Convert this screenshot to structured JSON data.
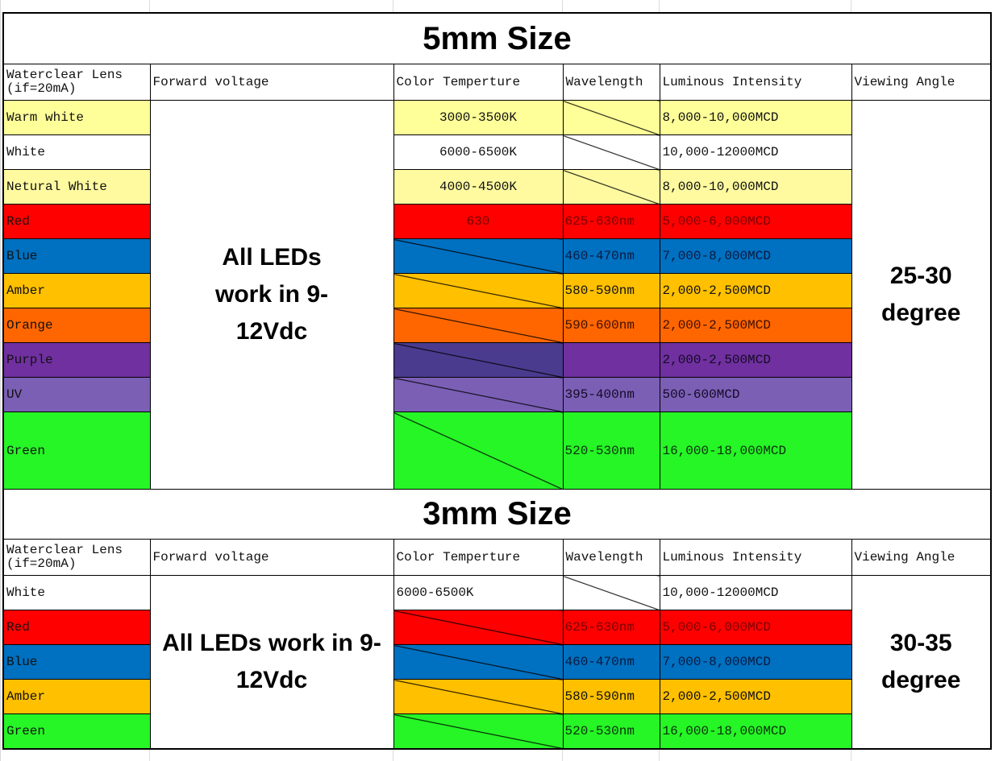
{
  "sections": [
    {
      "title": "5mm Size",
      "headers": [
        "Waterclear Lens\n(if=20mA)",
        "Forward voltage",
        "Color Temperture",
        "Wavelength",
        "Luminous Intensity",
        "Viewing Angle"
      ],
      "forward_voltage": "All LEDs work in 9-12Vdc",
      "viewing_angle": "25-30 degree",
      "rows": [
        {
          "name": "Warm white",
          "bg": "#ffff99",
          "fg": "#111111",
          "ct": "3000-3500K",
          "ct_center": true,
          "wl": "",
          "wl_diag": true,
          "li": "8,000-10,000MCD"
        },
        {
          "name": "White",
          "bg": "#ffffff",
          "fg": "#111111",
          "ct": "6000-6500K",
          "ct_center": true,
          "wl": "",
          "wl_diag": true,
          "li": "10,000-12000MCD"
        },
        {
          "name": "Netural White",
          "bg": "#fffaa0",
          "fg": "#111111",
          "ct": "4000-4500K",
          "ct_center": true,
          "wl": "",
          "wl_diag": true,
          "li": "8,000-10,000MCD"
        },
        {
          "name": "Red",
          "bg": "#ff0000",
          "fg": "#7a0000",
          "ct": "630",
          "ct_center": true,
          "wl": "625-630nm",
          "li": "5,000-6,000MCD"
        },
        {
          "name": "Blue",
          "bg": "#0070c0",
          "fg": "#0a1a40",
          "ct": "",
          "ct_diag": true,
          "wl": "460-470nm",
          "li": "7,000-8,000MCD"
        },
        {
          "name": "Amber",
          "bg": "#ffc000",
          "fg": "#111111",
          "ct": "",
          "ct_diag": true,
          "wl": "580-590nm",
          "li": "2,000-2,500MCD"
        },
        {
          "name": "Orange",
          "bg": "#ff6600",
          "fg": "#401000",
          "ct": "",
          "ct_diag": true,
          "wl": "590-600nm",
          "li": "2,000-2,500MCD"
        },
        {
          "name": "Purple",
          "bg": "#7030a0",
          "ct_bg": "#4b3b8f",
          "fg": "#150a25",
          "ct": "",
          "ct_diag": true,
          "wl": "",
          "li": "2,000-2,500MCD"
        },
        {
          "name": "UV",
          "bg": "#7b5fb5",
          "fg": "#150a25",
          "ct": "",
          "ct_diag": true,
          "wl": "395-400nm",
          "li": "500-600MCD"
        },
        {
          "name": "Green",
          "bg": "#26f526",
          "fg": "#0a300a",
          "ct": "",
          "ct_diag": true,
          "wl": "520-530nm",
          "li": "16,000-18,000MCD",
          "tall": true
        }
      ]
    },
    {
      "title": "3mm Size",
      "headers": [
        "Waterclear Lens\n(if=20mA)",
        "Forward voltage",
        "Color Temperture",
        "Wavelength",
        "Luminous Intensity",
        "Viewing Angle"
      ],
      "forward_voltage": "All LEDs work in 9-12Vdc",
      "viewing_angle": "30-35 degree",
      "rows": [
        {
          "name": "White",
          "bg": "#ffffff",
          "fg": "#111111",
          "ct": "6000-6500K",
          "wl": "",
          "wl_diag": true,
          "li": "10,000-12000MCD"
        },
        {
          "name": "Red",
          "bg": "#ff0000",
          "fg": "#7a0000",
          "ct": "",
          "ct_diag": true,
          "wl": "625-630nm",
          "li": "5,000-6,000MCD"
        },
        {
          "name": "Blue",
          "bg": "#0070c0",
          "fg": "#0a1a40",
          "ct": "",
          "ct_diag": true,
          "wl": "460-470nm",
          "li": "7,000-8,000MCD"
        },
        {
          "name": "Amber",
          "bg": "#ffc000",
          "fg": "#111111",
          "ct": "",
          "ct_diag": true,
          "wl": "580-590nm",
          "li": "2,000-2,500MCD"
        },
        {
          "name": "Green",
          "bg": "#26f526",
          "fg": "#0a300a",
          "ct": "",
          "ct_diag": true,
          "wl": "520-530nm",
          "li": "16,000-18,000MCD"
        }
      ]
    }
  ]
}
